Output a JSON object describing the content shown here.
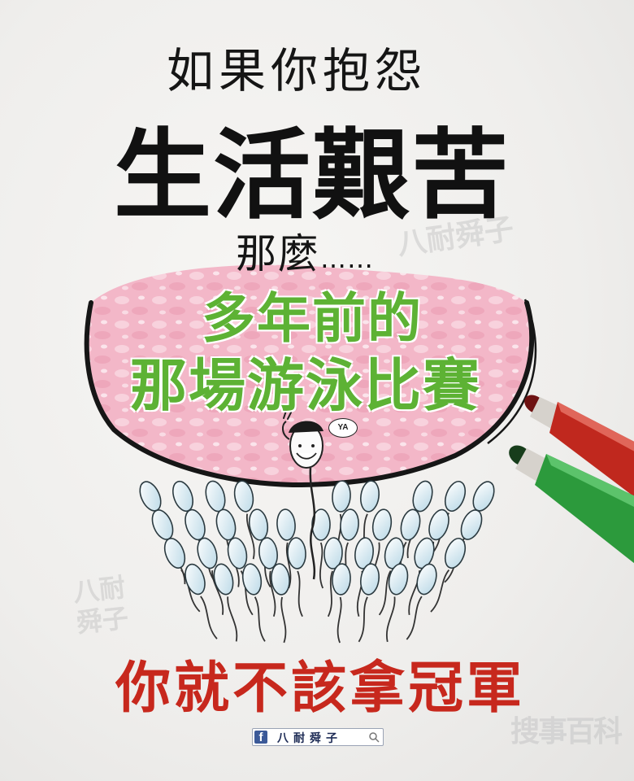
{
  "headline": {
    "line1": "如果你抱怨",
    "line2": "生活艱苦",
    "line3": "那麼",
    "line3_dots": "……"
  },
  "bubble_text": {
    "line1": "多年前的",
    "line2": "那場游泳比賽"
  },
  "conclusion": "你就不該拿冠軍",
  "character": {
    "speech": "YA"
  },
  "watermarks": {
    "artist_stamp_top": "八耐舜子",
    "artist_stamp_left": "八耐舜子",
    "corner_stamp": "搜事百科"
  },
  "facebook_bar": {
    "logo": "f",
    "page_name": "八耐舜子",
    "icon": "search-icon"
  },
  "colors": {
    "headline": "#151515",
    "bubble_green": "#5db234",
    "bubble_pink": "#f3b7c8",
    "conclusion_red": "#c7281d",
    "facebook_blue": "#3b5998",
    "sperm_blue": "#c9e2ec",
    "marker_red": "#c0281e",
    "marker_green": "#2c9a3c"
  },
  "illustration": {
    "egg": "pink-egg-cell",
    "sperm_crowd": "sperm-crowd",
    "winner": "winner-sperm-with-face",
    "markers": [
      "red-marker",
      "green-marker"
    ]
  }
}
